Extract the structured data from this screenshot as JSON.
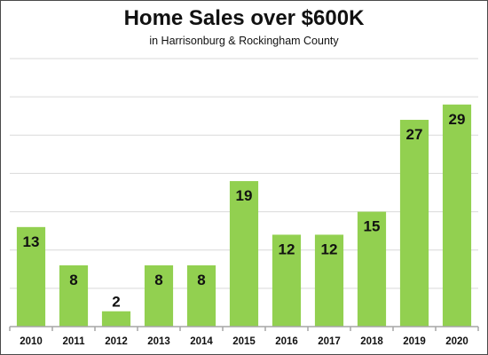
{
  "chart_data": {
    "type": "bar",
    "title": "Home Sales over $600K",
    "subtitle": "in Harrisonburg & Rockingham County",
    "categories": [
      "2010",
      "2011",
      "2012",
      "2013",
      "2014",
      "2015",
      "2016",
      "2017",
      "2018",
      "2019",
      "2020"
    ],
    "values": [
      13,
      8,
      2,
      8,
      8,
      19,
      12,
      12,
      15,
      27,
      29
    ],
    "xlabel": "",
    "ylabel": "",
    "ylim": [
      0,
      35
    ],
    "ytick_step": 5,
    "grid": true,
    "show_y_tick_labels": false,
    "bar_color": "#92d050"
  }
}
